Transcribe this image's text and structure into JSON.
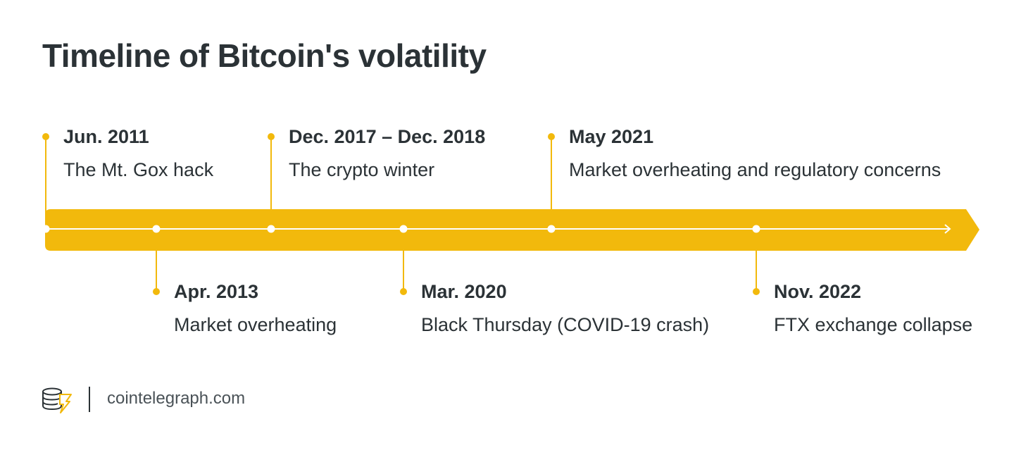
{
  "title": "Timeline of Bitcoin's volatility",
  "colors": {
    "accent": "#f2b90c",
    "text": "#2b3236",
    "line": "#ffffff"
  },
  "events": [
    {
      "date": "Jun. 2011",
      "desc": "The Mt. Gox hack",
      "position": "above"
    },
    {
      "date": "Apr. 2013",
      "desc": "Market overheating",
      "position": "below"
    },
    {
      "date": "Dec. 2017 – Dec. 2018",
      "desc": "The crypto winter",
      "position": "above"
    },
    {
      "date": "Mar. 2020",
      "desc": "Black Thursday (COVID-19 crash)",
      "position": "below"
    },
    {
      "date": "May 2021",
      "desc": "Market overheating and regulatory concerns",
      "position": "above"
    },
    {
      "date": "Nov. 2022",
      "desc": "FTX exchange collapse",
      "position": "below"
    }
  ],
  "footer": {
    "logo_icon": "cointelegraph-logo-icon",
    "site": "cointelegraph.com"
  }
}
